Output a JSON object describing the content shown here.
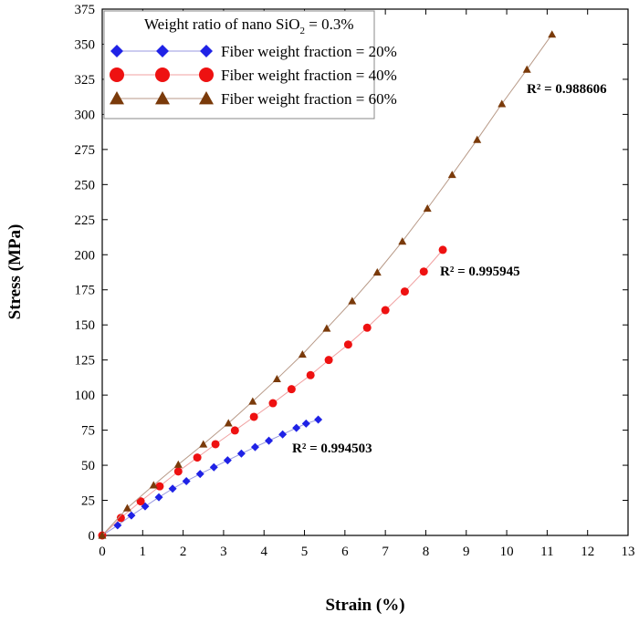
{
  "chart_data": {
    "type": "scatter",
    "xlabel": "Strain (%)",
    "ylabel": "Stress (MPa)",
    "xlim": [
      0,
      13
    ],
    "ylim": [
      0,
      375
    ],
    "xticks": [
      0,
      1,
      2,
      3,
      4,
      5,
      6,
      7,
      8,
      9,
      10,
      11,
      12,
      13
    ],
    "yticks": [
      0,
      25,
      50,
      75,
      100,
      125,
      150,
      175,
      200,
      225,
      250,
      275,
      300,
      325,
      350,
      375
    ],
    "legend": {
      "title_main": "Weight ratio of nano SiO",
      "title_sub": "2",
      "title_tail": " = 0.3%",
      "placement": "top-left"
    },
    "series": [
      {
        "name": "Fiber weight fraction = 20%",
        "marker": "diamond",
        "color": "#1f22e6",
        "line_color": "#9a9ae0",
        "r2_label": "R² = 0.994503",
        "points": [
          [
            0,
            0
          ],
          [
            0.38,
            7.2
          ],
          [
            0.72,
            14.2
          ],
          [
            1.06,
            20.7
          ],
          [
            1.4,
            27.2
          ],
          [
            1.74,
            33.3
          ],
          [
            2.08,
            38.7
          ],
          [
            2.42,
            43.8
          ],
          [
            2.76,
            48.6
          ],
          [
            3.1,
            53.5
          ],
          [
            3.44,
            58.3
          ],
          [
            3.78,
            63
          ],
          [
            4.12,
            67.5
          ],
          [
            4.46,
            72
          ],
          [
            4.8,
            76.6
          ],
          [
            5.04,
            79.7
          ],
          [
            5.34,
            82.5
          ]
        ]
      },
      {
        "name": "Fiber weight fraction = 40%",
        "marker": "circle",
        "color": "#ee1111",
        "line_color": "#f0a0a0",
        "r2_label": "R² = 0.995945",
        "points": [
          [
            0,
            0
          ],
          [
            0.46,
            12.5
          ],
          [
            0.95,
            24.3
          ],
          [
            1.42,
            35
          ],
          [
            1.88,
            45.6
          ],
          [
            2.35,
            55.5
          ],
          [
            2.8,
            65
          ],
          [
            3.28,
            74.8
          ],
          [
            3.75,
            84.5
          ],
          [
            4.22,
            94.2
          ],
          [
            4.68,
            104.2
          ],
          [
            5.15,
            114.2
          ],
          [
            5.6,
            125
          ],
          [
            6.08,
            136
          ],
          [
            6.55,
            148
          ],
          [
            7,
            160.5
          ],
          [
            7.48,
            173.8
          ],
          [
            7.95,
            188
          ],
          [
            8.42,
            203.5
          ]
        ]
      },
      {
        "name": "Fiber weight fraction = 60%",
        "marker": "triangle",
        "color": "#7a3a0a",
        "line_color": "#b89a88",
        "r2_label": "R² = 0.988606",
        "points": [
          [
            0,
            0
          ],
          [
            0.62,
            19.5
          ],
          [
            1.27,
            35.8
          ],
          [
            1.88,
            50.5
          ],
          [
            2.5,
            65
          ],
          [
            3.12,
            80
          ],
          [
            3.72,
            95.5
          ],
          [
            4.32,
            111.5
          ],
          [
            4.95,
            129
          ],
          [
            5.55,
            147.5
          ],
          [
            6.18,
            167
          ],
          [
            6.8,
            187.5
          ],
          [
            7.42,
            209.5
          ],
          [
            8.04,
            233
          ],
          [
            8.65,
            257
          ],
          [
            9.27,
            282
          ],
          [
            9.88,
            307.5
          ],
          [
            10.5,
            332
          ],
          [
            11.12,
            357
          ]
        ]
      }
    ]
  }
}
